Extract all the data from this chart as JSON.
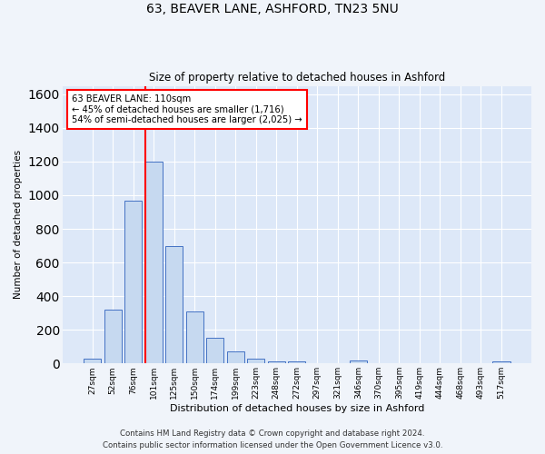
{
  "title1": "63, BEAVER LANE, ASHFORD, TN23 5NU",
  "title2": "Size of property relative to detached houses in Ashford",
  "xlabel": "Distribution of detached houses by size in Ashford",
  "ylabel": "Number of detached properties",
  "bar_labels": [
    "27sqm",
    "52sqm",
    "76sqm",
    "101sqm",
    "125sqm",
    "150sqm",
    "174sqm",
    "199sqm",
    "223sqm",
    "248sqm",
    "272sqm",
    "297sqm",
    "321sqm",
    "346sqm",
    "370sqm",
    "395sqm",
    "419sqm",
    "444sqm",
    "468sqm",
    "493sqm",
    "517sqm"
  ],
  "bar_values": [
    30,
    320,
    970,
    1200,
    700,
    310,
    155,
    70,
    30,
    15,
    12,
    0,
    0,
    20,
    0,
    0,
    0,
    0,
    0,
    0,
    15
  ],
  "bar_color": "#c6d9f0",
  "bar_edge_color": "#4472c4",
  "vline_color": "red",
  "annotation_text": "63 BEAVER LANE: 110sqm\n← 45% of detached houses are smaller (1,716)\n54% of semi-detached houses are larger (2,025) →",
  "annotation_box_color": "white",
  "annotation_box_edge": "red",
  "ylim": [
    0,
    1650
  ],
  "yticks": [
    0,
    200,
    400,
    600,
    800,
    1000,
    1200,
    1400,
    1600
  ],
  "footer1": "Contains HM Land Registry data © Crown copyright and database right 2024.",
  "footer2": "Contains public sector information licensed under the Open Government Licence v3.0.",
  "bg_color": "#f0f4fa",
  "plot_bg_color": "#dde8f8"
}
